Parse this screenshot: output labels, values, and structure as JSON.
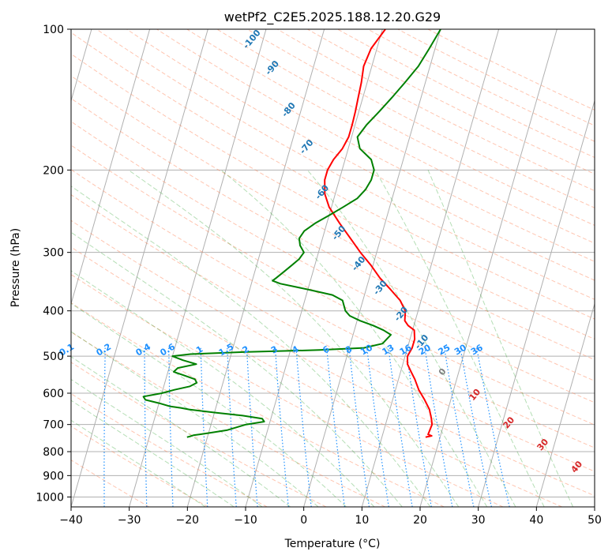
{
  "chart_data": {
    "type": "line",
    "title": "wetPf2_C2E5.2025.188.12.20.G29",
    "xlabel": "Temperature (°C)",
    "ylabel": "Pressure (hPa)",
    "xlim": [
      -40,
      50
    ],
    "ylim": [
      1050,
      100
    ],
    "y_scale": "log",
    "x_ticks": [
      -40,
      -30,
      -20,
      -10,
      0,
      10,
      20,
      30,
      40,
      50
    ],
    "y_ticks": [
      100,
      200,
      300,
      400,
      500,
      600,
      700,
      800,
      900,
      1000
    ],
    "grid": true,
    "series": [
      {
        "color": "#ff0000",
        "pressure": [
          745,
          740,
          735,
          700,
          680,
          650,
          620,
          590,
          560,
          540,
          520,
          500,
          480,
          460,
          440,
          430,
          420,
          400,
          380,
          360,
          340,
          320,
          300,
          280,
          260,
          240,
          225,
          210,
          200,
          190,
          180,
          170,
          160,
          150,
          140,
          130,
          120,
          110,
          100
        ],
        "temp": [
          17.5,
          18.5,
          17.8,
          18.0,
          17.6,
          16.8,
          15.5,
          14.0,
          12.8,
          11.8,
          10.8,
          10.4,
          10.8,
          10.8,
          10.3,
          9.0,
          8.2,
          7.8,
          6.4,
          4.2,
          1.8,
          -0.3,
          -2.8,
          -5.2,
          -7.8,
          -10.4,
          -11.8,
          -12.5,
          -12.5,
          -12.0,
          -11.0,
          -10.5,
          -10.5,
          -10.6,
          -10.8,
          -11.0,
          -11.4,
          -11.0,
          -9.5
        ]
      },
      {
        "color": "#008000",
        "pressure": [
          745,
          742,
          738,
          730,
          720,
          700,
          690,
          680,
          670,
          660,
          650,
          645,
          640,
          630,
          620,
          610,
          600,
          590,
          580,
          570,
          560,
          550,
          540,
          530,
          520,
          510,
          500,
          495,
          490,
          485,
          480,
          470,
          460,
          450,
          440,
          430,
          420,
          410,
          400,
          390,
          380,
          370,
          360,
          350,
          345,
          340,
          330,
          320,
          310,
          300,
          290,
          280,
          270,
          260,
          250,
          240,
          230,
          220,
          210,
          200,
          190,
          180,
          170,
          160,
          150,
          140,
          130,
          120,
          110,
          100
        ],
        "temp": [
          -23.5,
          -23.0,
          -22.5,
          -20.0,
          -17.0,
          -14.0,
          -11.0,
          -11.5,
          -15.0,
          -20.0,
          -24.5,
          -26.0,
          -28.0,
          -30.0,
          -32.5,
          -33.0,
          -30.0,
          -28.0,
          -25.5,
          -24.5,
          -25.0,
          -27.0,
          -29.0,
          -28.5,
          -25.5,
          -28.0,
          -30.0,
          -27.0,
          -18.0,
          -5.0,
          2.5,
          5.5,
          6.0,
          6.5,
          5.0,
          3.0,
          0.5,
          -1.5,
          -2.5,
          -3.0,
          -3.5,
          -5.5,
          -10.0,
          -15.0,
          -16.5,
          -16.0,
          -15.0,
          -14.0,
          -13.0,
          -12.5,
          -13.5,
          -14.0,
          -13.5,
          -12.0,
          -10.0,
          -8.0,
          -6.0,
          -5.0,
          -4.5,
          -4.5,
          -5.5,
          -8.0,
          -9.0,
          -8.0,
          -6.5,
          -5.0,
          -3.5,
          -2.0,
          -1.0,
          0.0
        ]
      }
    ],
    "mixing_ratio_labels": [
      "0.1",
      "0.2",
      "0.4",
      "0.6",
      "1",
      "1.5",
      "2",
      "3",
      "4",
      "6",
      "8",
      "10",
      "13",
      "16",
      "20",
      "25",
      "30",
      "36"
    ],
    "dry_adiabat_labels": [
      "-100",
      "-90",
      "-80",
      "-70",
      "-60",
      "-50",
      "-40",
      "-30",
      "-20",
      "-10"
    ],
    "moist_adiabat_labels": [
      "10",
      "20",
      "30",
      "40"
    ],
    "zero_label": "0"
  }
}
